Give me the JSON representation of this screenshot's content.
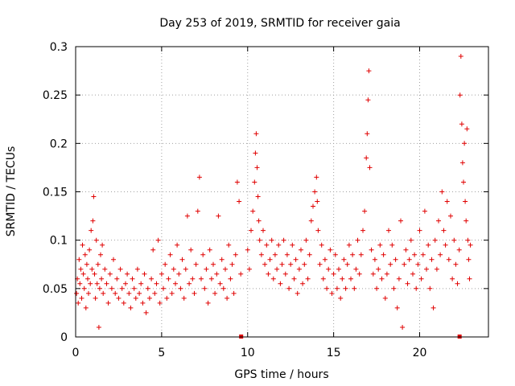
{
  "chart_data": {
    "type": "scatter",
    "title": "Day 253 of 2019, SRMTID for receiver gaia",
    "xlabel": "GPS time / hours",
    "ylabel": "SRMTID / TECUs",
    "xlim": [
      0,
      24
    ],
    "ylim": [
      0,
      0.3
    ],
    "xticks": [
      0,
      5,
      10,
      15,
      20
    ],
    "xtick_labels": [
      "0",
      "5",
      "10",
      "15",
      "20"
    ],
    "yticks": [
      0,
      0.05,
      0.1,
      0.15,
      0.2,
      0.25,
      0.3
    ],
    "ytick_labels": [
      "0",
      "0.05",
      "0.1",
      "0.15",
      "0.2",
      "0.25",
      "0.3"
    ],
    "grid": true,
    "marker": "+",
    "color": "#e00000",
    "gap_markers_x": [
      9.6,
      22.3
    ],
    "series": [
      {
        "name": "SRMTID",
        "points": [
          [
            0.05,
            0.045
          ],
          [
            0.1,
            0.06
          ],
          [
            0.15,
            0.035
          ],
          [
            0.2,
            0.08
          ],
          [
            0.25,
            0.055
          ],
          [
            0.3,
            0.07
          ],
          [
            0.35,
            0.04
          ],
          [
            0.4,
            0.095
          ],
          [
            0.45,
            0.065
          ],
          [
            0.5,
            0.05
          ],
          [
            0.55,
            0.085
          ],
          [
            0.6,
            0.03
          ],
          [
            0.65,
            0.075
          ],
          [
            0.7,
            0.06
          ],
          [
            0.75,
            0.045
          ],
          [
            0.8,
            0.09
          ],
          [
            0.85,
            0.055
          ],
          [
            0.9,
            0.11
          ],
          [
            0.95,
            0.07
          ],
          [
            1.0,
            0.12
          ],
          [
            1.05,
            0.145
          ],
          [
            1.1,
            0.065
          ],
          [
            1.15,
            0.04
          ],
          [
            1.2,
            0.1
          ],
          [
            1.25,
            0.055
          ],
          [
            1.3,
            0.075
          ],
          [
            1.35,
            0.01
          ],
          [
            1.4,
            0.05
          ],
          [
            1.45,
            0.085
          ],
          [
            1.5,
            0.06
          ],
          [
            1.55,
            0.095
          ],
          [
            1.6,
            0.045
          ],
          [
            1.7,
            0.07
          ],
          [
            1.8,
            0.055
          ],
          [
            1.9,
            0.035
          ],
          [
            2.0,
            0.065
          ],
          [
            2.1,
            0.05
          ],
          [
            2.2,
            0.08
          ],
          [
            2.3,
            0.045
          ],
          [
            2.4,
            0.06
          ],
          [
            2.5,
            0.04
          ],
          [
            2.6,
            0.07
          ],
          [
            2.7,
            0.05
          ],
          [
            2.8,
            0.035
          ],
          [
            2.9,
            0.055
          ],
          [
            3.0,
            0.065
          ],
          [
            3.1,
            0.045
          ],
          [
            3.2,
            0.03
          ],
          [
            3.3,
            0.06
          ],
          [
            3.4,
            0.05
          ],
          [
            3.5,
            0.04
          ],
          [
            3.6,
            0.07
          ],
          [
            3.7,
            0.045
          ],
          [
            3.8,
            0.055
          ],
          [
            3.9,
            0.035
          ],
          [
            4.0,
            0.065
          ],
          [
            4.1,
            0.025
          ],
          [
            4.2,
            0.05
          ],
          [
            4.3,
            0.04
          ],
          [
            4.4,
            0.06
          ],
          [
            4.5,
            0.09
          ],
          [
            4.6,
            0.045
          ],
          [
            4.7,
            0.055
          ],
          [
            4.8,
            0.1
          ],
          [
            4.9,
            0.035
          ],
          [
            5.0,
            0.065
          ],
          [
            5.1,
            0.05
          ],
          [
            5.2,
            0.075
          ],
          [
            5.3,
            0.04
          ],
          [
            5.4,
            0.06
          ],
          [
            5.5,
            0.085
          ],
          [
            5.6,
            0.045
          ],
          [
            5.7,
            0.07
          ],
          [
            5.8,
            0.055
          ],
          [
            5.9,
            0.095
          ],
          [
            6.0,
            0.065
          ],
          [
            6.1,
            0.05
          ],
          [
            6.2,
            0.08
          ],
          [
            6.3,
            0.04
          ],
          [
            6.4,
            0.07
          ],
          [
            6.5,
            0.125
          ],
          [
            6.6,
            0.055
          ],
          [
            6.7,
            0.09
          ],
          [
            6.8,
            0.06
          ],
          [
            6.9,
            0.045
          ],
          [
            7.0,
            0.075
          ],
          [
            7.1,
            0.13
          ],
          [
            7.2,
            0.165
          ],
          [
            7.3,
            0.06
          ],
          [
            7.4,
            0.085
          ],
          [
            7.5,
            0.05
          ],
          [
            7.6,
            0.07
          ],
          [
            7.7,
            0.035
          ],
          [
            7.8,
            0.09
          ],
          [
            7.9,
            0.06
          ],
          [
            8.0,
            0.075
          ],
          [
            8.1,
            0.045
          ],
          [
            8.2,
            0.065
          ],
          [
            8.3,
            0.125
          ],
          [
            8.4,
            0.055
          ],
          [
            8.5,
            0.08
          ],
          [
            8.6,
            0.05
          ],
          [
            8.7,
            0.07
          ],
          [
            8.8,
            0.04
          ],
          [
            8.9,
            0.095
          ],
          [
            9.0,
            0.06
          ],
          [
            9.1,
            0.075
          ],
          [
            9.2,
            0.045
          ],
          [
            9.3,
            0.085
          ],
          [
            9.4,
            0.16
          ],
          [
            9.5,
            0.14
          ],
          [
            9.6,
            0.065
          ],
          [
            10.0,
            0.09
          ],
          [
            10.1,
            0.07
          ],
          [
            10.2,
            0.11
          ],
          [
            10.3,
            0.13
          ],
          [
            10.4,
            0.16
          ],
          [
            10.45,
            0.19
          ],
          [
            10.5,
            0.21
          ],
          [
            10.55,
            0.175
          ],
          [
            10.6,
            0.145
          ],
          [
            10.65,
            0.12
          ],
          [
            10.7,
            0.1
          ],
          [
            10.8,
            0.085
          ],
          [
            10.9,
            0.11
          ],
          [
            11.0,
            0.075
          ],
          [
            11.1,
            0.095
          ],
          [
            11.2,
            0.065
          ],
          [
            11.3,
            0.08
          ],
          [
            11.4,
            0.1
          ],
          [
            11.5,
            0.06
          ],
          [
            11.6,
            0.085
          ],
          [
            11.7,
            0.07
          ],
          [
            11.8,
            0.095
          ],
          [
            11.9,
            0.055
          ],
          [
            12.0,
            0.075
          ],
          [
            12.1,
            0.1
          ],
          [
            12.2,
            0.065
          ],
          [
            12.3,
            0.085
          ],
          [
            12.4,
            0.05
          ],
          [
            12.5,
            0.075
          ],
          [
            12.6,
            0.095
          ],
          [
            12.7,
            0.06
          ],
          [
            12.8,
            0.08
          ],
          [
            12.9,
            0.045
          ],
          [
            13.0,
            0.07
          ],
          [
            13.1,
            0.09
          ],
          [
            13.2,
            0.055
          ],
          [
            13.3,
            0.075
          ],
          [
            13.4,
            0.1
          ],
          [
            13.5,
            0.06
          ],
          [
            13.6,
            0.085
          ],
          [
            13.7,
            0.12
          ],
          [
            13.8,
            0.135
          ],
          [
            13.9,
            0.15
          ],
          [
            14.0,
            0.165
          ],
          [
            14.05,
            0.14
          ],
          [
            14.1,
            0.11
          ],
          [
            14.2,
            0.075
          ],
          [
            14.3,
            0.095
          ],
          [
            14.4,
            0.06
          ],
          [
            14.5,
            0.08
          ],
          [
            14.6,
            0.05
          ],
          [
            14.7,
            0.07
          ],
          [
            14.8,
            0.09
          ],
          [
            14.9,
            0.045
          ],
          [
            15.0,
            0.065
          ],
          [
            15.1,
            0.085
          ],
          [
            15.2,
            0.05
          ],
          [
            15.3,
            0.07
          ],
          [
            15.4,
            0.04
          ],
          [
            15.5,
            0.06
          ],
          [
            15.6,
            0.08
          ],
          [
            15.7,
            0.05
          ],
          [
            15.8,
            0.075
          ],
          [
            15.9,
            0.095
          ],
          [
            16.0,
            0.06
          ],
          [
            16.1,
            0.085
          ],
          [
            16.2,
            0.05
          ],
          [
            16.3,
            0.07
          ],
          [
            16.4,
            0.1
          ],
          [
            16.5,
            0.065
          ],
          [
            16.6,
            0.085
          ],
          [
            16.7,
            0.11
          ],
          [
            16.8,
            0.13
          ],
          [
            16.9,
            0.185
          ],
          [
            16.95,
            0.21
          ],
          [
            17.0,
            0.245
          ],
          [
            17.05,
            0.275
          ],
          [
            17.1,
            0.175
          ],
          [
            17.2,
            0.09
          ],
          [
            17.3,
            0.065
          ],
          [
            17.4,
            0.08
          ],
          [
            17.5,
            0.05
          ],
          [
            17.6,
            0.07
          ],
          [
            17.7,
            0.095
          ],
          [
            17.8,
            0.06
          ],
          [
            17.9,
            0.085
          ],
          [
            18.0,
            0.04
          ],
          [
            18.1,
            0.065
          ],
          [
            18.2,
            0.11
          ],
          [
            18.3,
            0.075
          ],
          [
            18.4,
            0.095
          ],
          [
            18.5,
            0.05
          ],
          [
            18.6,
            0.08
          ],
          [
            18.7,
            0.03
          ],
          [
            18.8,
            0.06
          ],
          [
            18.9,
            0.12
          ],
          [
            19.0,
            0.01
          ],
          [
            19.1,
            0.075
          ],
          [
            19.2,
            0.09
          ],
          [
            19.3,
            0.055
          ],
          [
            19.4,
            0.08
          ],
          [
            19.5,
            0.1
          ],
          [
            19.6,
            0.065
          ],
          [
            19.7,
            0.085
          ],
          [
            19.8,
            0.05
          ],
          [
            19.9,
            0.075
          ],
          [
            20.0,
            0.11
          ],
          [
            20.1,
            0.06
          ],
          [
            20.2,
            0.085
          ],
          [
            20.3,
            0.13
          ],
          [
            20.4,
            0.07
          ],
          [
            20.5,
            0.095
          ],
          [
            20.6,
            0.05
          ],
          [
            20.7,
            0.08
          ],
          [
            20.8,
            0.03
          ],
          [
            20.9,
            0.1
          ],
          [
            21.0,
            0.07
          ],
          [
            21.1,
            0.12
          ],
          [
            21.2,
            0.085
          ],
          [
            21.3,
            0.15
          ],
          [
            21.4,
            0.11
          ],
          [
            21.5,
            0.095
          ],
          [
            21.6,
            0.14
          ],
          [
            21.7,
            0.08
          ],
          [
            21.8,
            0.125
          ],
          [
            21.9,
            0.06
          ],
          [
            22.0,
            0.1
          ],
          [
            22.1,
            0.075
          ],
          [
            22.2,
            0.055
          ],
          [
            22.3,
            0.09
          ],
          [
            22.35,
            0.25
          ],
          [
            22.4,
            0.29
          ],
          [
            22.45,
            0.22
          ],
          [
            22.5,
            0.18
          ],
          [
            22.55,
            0.16
          ],
          [
            22.6,
            0.2
          ],
          [
            22.65,
            0.14
          ],
          [
            22.7,
            0.12
          ],
          [
            22.75,
            0.215
          ],
          [
            22.8,
            0.1
          ],
          [
            22.85,
            0.08
          ],
          [
            22.9,
            0.06
          ],
          [
            22.95,
            0.095
          ]
        ]
      }
    ]
  }
}
